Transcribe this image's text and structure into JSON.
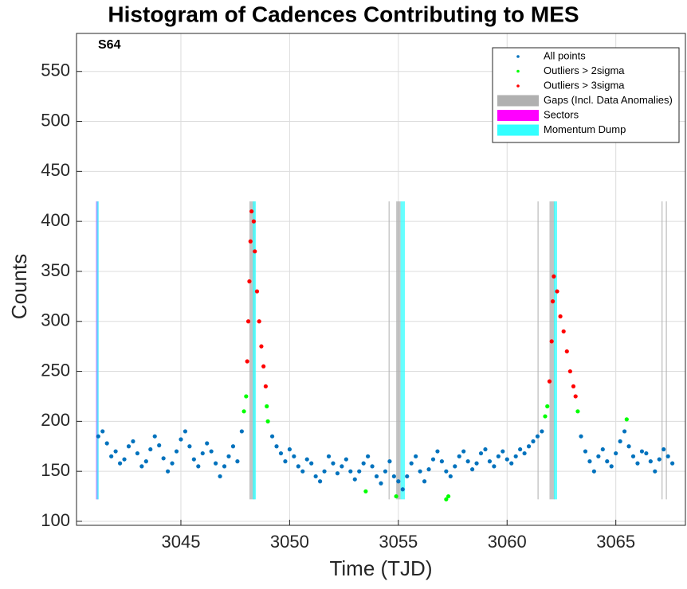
{
  "chart_data": {
    "type": "scatter",
    "title": "Histogram of Cadences Contributing to MES",
    "annotation": "S64",
    "x_label": "Time (TJD)",
    "y_label": "Counts",
    "xlim": [
      3040.2,
      3068.2
    ],
    "ylim": [
      96,
      588
    ],
    "xticks": [
      3045,
      3050,
      3055,
      3060,
      3065
    ],
    "yticks": [
      100,
      150,
      200,
      250,
      300,
      350,
      400,
      450,
      500,
      550
    ],
    "grid": true,
    "legend": "upper right",
    "series": [
      {
        "name": "All points",
        "color": "#0072bd",
        "x": [
          3041.2,
          3041.4,
          3041.6,
          3041.8,
          3042.0,
          3042.2,
          3042.4,
          3042.6,
          3042.8,
          3043.0,
          3043.2,
          3043.4,
          3043.6,
          3043.8,
          3044.0,
          3044.2,
          3044.4,
          3044.6,
          3044.8,
          3045.0,
          3045.2,
          3045.4,
          3045.6,
          3045.8,
          3046.0,
          3046.2,
          3046.4,
          3046.6,
          3046.8,
          3047.0,
          3047.2,
          3047.4,
          3047.6,
          3047.8,
          3049.2,
          3049.4,
          3049.6,
          3049.8,
          3050.0,
          3050.2,
          3050.4,
          3050.6,
          3050.8,
          3051.0,
          3051.2,
          3051.4,
          3051.6,
          3051.8,
          3052.0,
          3052.2,
          3052.4,
          3052.6,
          3052.8,
          3053.0,
          3053.2,
          3053.4,
          3053.6,
          3053.8,
          3054.0,
          3054.2,
          3054.4,
          3054.6,
          3054.8,
          3055.0,
          3055.2,
          3055.4,
          3055.6,
          3055.8,
          3056.0,
          3056.2,
          3056.4,
          3056.6,
          3056.8,
          3057.0,
          3057.2,
          3057.4,
          3057.6,
          3057.8,
          3058.0,
          3058.2,
          3058.4,
          3058.6,
          3058.8,
          3059.0,
          3059.2,
          3059.4,
          3059.6,
          3059.8,
          3060.0,
          3060.2,
          3060.4,
          3060.6,
          3060.8,
          3061.0,
          3061.2,
          3061.4,
          3061.6,
          3063.4,
          3063.6,
          3063.8,
          3064.0,
          3064.2,
          3064.4,
          3064.6,
          3064.8,
          3065.0,
          3065.2,
          3065.4,
          3065.6,
          3065.8,
          3066.0,
          3066.2,
          3066.4,
          3066.6,
          3066.8,
          3067.0,
          3067.2,
          3067.4,
          3067.6
        ],
        "values": [
          185,
          190,
          178,
          165,
          170,
          158,
          162,
          175,
          180,
          168,
          155,
          160,
          172,
          185,
          176,
          163,
          150,
          158,
          170,
          182,
          190,
          175,
          162,
          155,
          168,
          178,
          170,
          158,
          145,
          155,
          165,
          175,
          160,
          190,
          185,
          175,
          168,
          160,
          172,
          165,
          155,
          150,
          162,
          158,
          145,
          140,
          150,
          165,
          158,
          148,
          155,
          162,
          150,
          142,
          150,
          158,
          165,
          155,
          145,
          138,
          150,
          160,
          145,
          140,
          132,
          145,
          158,
          165,
          150,
          140,
          152,
          162,
          170,
          160,
          150,
          145,
          155,
          165,
          170,
          160,
          152,
          158,
          168,
          172,
          160,
          155,
          165,
          170,
          162,
          158,
          165,
          172,
          168,
          175,
          180,
          185,
          190,
          185,
          170,
          160,
          150,
          165,
          172,
          160,
          155,
          168,
          180,
          190,
          175,
          165,
          158,
          170,
          168,
          160,
          150,
          162,
          172,
          165,
          158
        ]
      },
      {
        "name": "Outliers > 2sigma",
        "color": "#00ff00",
        "x": [
          3047.9,
          3048.0,
          3048.95,
          3049.0,
          3053.5,
          3054.9,
          3057.2,
          3057.3,
          3061.75,
          3061.85,
          3063.25,
          3065.5
        ],
        "values": [
          210,
          225,
          215,
          200,
          130,
          125,
          122,
          125,
          205,
          215,
          210,
          202
        ]
      },
      {
        "name": "Outliers > 3sigma",
        "color": "#ff0000",
        "x": [
          3048.05,
          3048.1,
          3048.15,
          3048.2,
          3048.25,
          3048.35,
          3048.4,
          3048.5,
          3048.6,
          3048.7,
          3048.8,
          3048.9,
          3061.95,
          3062.05,
          3062.1,
          3062.15,
          3062.3,
          3062.45,
          3062.6,
          3062.75,
          3062.9,
          3063.05,
          3063.15
        ],
        "values": [
          260,
          300,
          340,
          380,
          410,
          400,
          370,
          330,
          300,
          275,
          255,
          235,
          240,
          280,
          320,
          345,
          330,
          305,
          290,
          270,
          250,
          235,
          225
        ]
      },
      {
        "name": "Gaps (Incl. Data Anomalies)",
        "color": "#b0b0b0",
        "y_range": [
          122,
          420
        ],
        "bands": [
          [
            3048.15,
            3048.4
          ],
          [
            3054.55,
            3054.6
          ],
          [
            3054.9,
            3055.1
          ],
          [
            3061.4,
            3061.45
          ],
          [
            3061.95,
            3062.2
          ],
          [
            3067.1,
            3067.15
          ],
          [
            3067.3,
            3067.35
          ]
        ]
      },
      {
        "name": "Sectors",
        "color": "#ff00ff",
        "y_range": [
          122,
          420
        ],
        "bands": [
          [
            3041.1,
            3041.2
          ]
        ]
      },
      {
        "name": "Momentum Dump",
        "color": "#33ffff",
        "y_range": [
          122,
          420
        ],
        "bands": [
          [
            3041.12,
            3041.22
          ],
          [
            3048.3,
            3048.45
          ],
          [
            3055.1,
            3055.3
          ],
          [
            3062.15,
            3062.3
          ]
        ]
      }
    ]
  }
}
